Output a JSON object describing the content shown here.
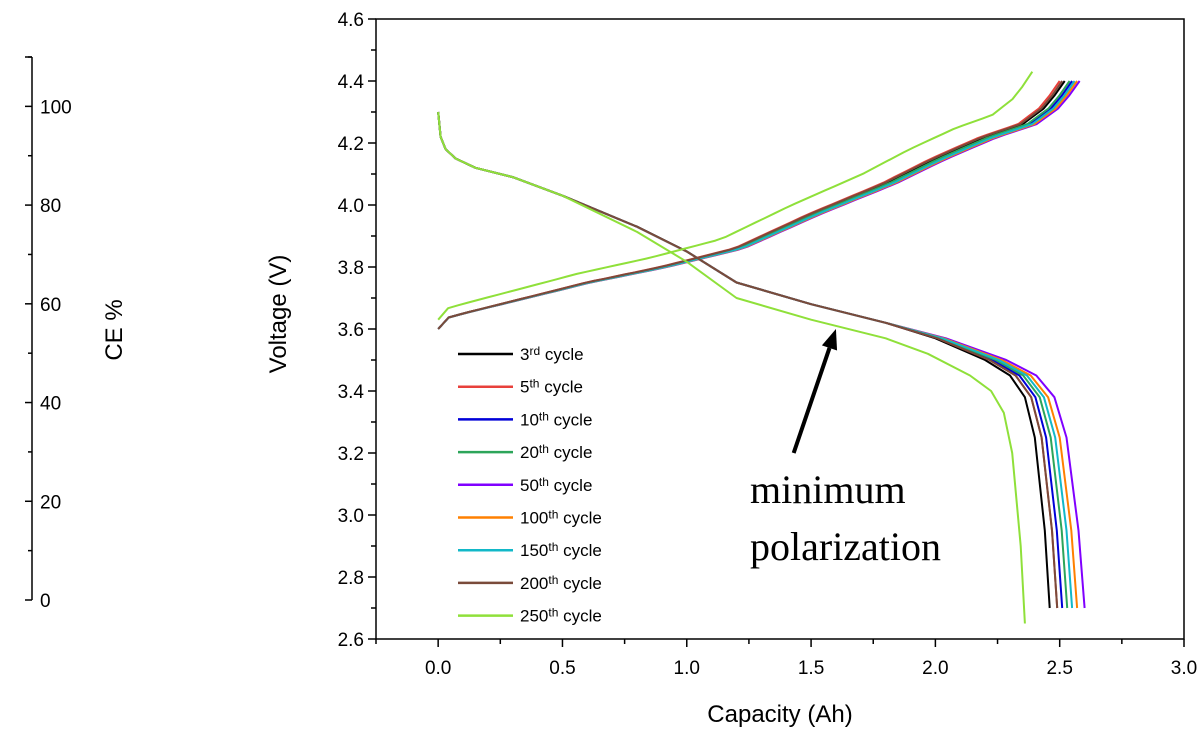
{
  "chart_data": {
    "type": "line",
    "xlabel": "Capacity (Ah)",
    "ylabel": "Voltage (V)",
    "xlim": [
      -0.25,
      3.0
    ],
    "ylim": [
      2.6,
      4.6
    ],
    "xticks": [
      "0.0",
      "0.5",
      "1.0",
      "1.5",
      "2.0",
      "2.5",
      "3.0"
    ],
    "yticks": [
      "2.6",
      "2.8",
      "3.0",
      "3.2",
      "3.4",
      "3.6",
      "3.8",
      "4.0",
      "4.2",
      "4.4",
      "4.6"
    ],
    "secondary_axis": {
      "label": "CE %",
      "position": "left",
      "ylim": [
        0,
        110
      ],
      "ticks": [
        "0",
        "20",
        "40",
        "60",
        "80",
        "100"
      ]
    },
    "legend_position": "bottom-left",
    "annotation": {
      "lines": [
        "minimum",
        "polarization"
      ],
      "arrow_tip": [
        1.6,
        3.6
      ],
      "arrow_tail": [
        1.43,
        3.2
      ]
    },
    "series": [
      {
        "name": "3",
        "sup": "rd",
        "suffix": " cycle",
        "color": "#000000",
        "end_cap": 2.46,
        "charge_shift": 0.0
      },
      {
        "name": "5",
        "sup": "th",
        "suffix": " cycle",
        "color": "#e8403b",
        "end_cap": 2.49,
        "charge_shift": -0.02
      },
      {
        "name": "10",
        "sup": "th",
        "suffix": " cycle",
        "color": "#0000d8",
        "end_cap": 2.51,
        "charge_shift": 0.03
      },
      {
        "name": "20",
        "sup": "th",
        "suffix": " cycle",
        "color": "#2ca55a",
        "end_cap": 2.53,
        "charge_shift": 0.02
      },
      {
        "name": "50",
        "sup": "th",
        "suffix": " cycle",
        "color": "#8000ff",
        "end_cap": 2.6,
        "charge_shift": 0.06
      },
      {
        "name": "100",
        "sup": "th",
        "suffix": " cycle",
        "color": "#ff8000",
        "end_cap": 2.57,
        "charge_shift": 0.05
      },
      {
        "name": "150",
        "sup": "th",
        "suffix": " cycle",
        "color": "#12b8c8",
        "end_cap": 2.55,
        "charge_shift": 0.04
      },
      {
        "name": "200",
        "sup": "th",
        "suffix": " cycle",
        "color": "#7a4a3a",
        "end_cap": 2.49,
        "charge_shift": -0.01
      },
      {
        "name": "250",
        "sup": "th",
        "suffix": " cycle",
        "color": "#8fe03a",
        "end_cap": 2.36,
        "charge_shift": -0.13
      }
    ],
    "discharge_profile": {
      "q": [
        0.0,
        0.01,
        0.03,
        0.07,
        0.15,
        0.3,
        0.5,
        0.8,
        1.0,
        1.2,
        1.5,
        1.8,
        2.0,
        2.2,
        2.3,
        2.36,
        2.4,
        2.44,
        2.46
      ],
      "v": [
        4.3,
        4.22,
        4.18,
        4.15,
        4.12,
        4.09,
        4.03,
        3.93,
        3.85,
        3.75,
        3.68,
        3.62,
        3.57,
        3.5,
        3.45,
        3.38,
        3.25,
        2.95,
        2.7
      ]
    },
    "charge_profile": {
      "q": [
        0.0,
        0.01,
        0.1,
        0.3,
        0.6,
        0.9,
        1.2,
        1.5,
        1.8,
        2.0,
        2.2,
        2.35,
        2.45,
        2.52
      ],
      "v": [
        3.6,
        3.63,
        3.65,
        3.69,
        3.75,
        3.8,
        3.86,
        3.97,
        4.07,
        4.15,
        4.22,
        4.26,
        4.32,
        4.4
      ]
    }
  }
}
